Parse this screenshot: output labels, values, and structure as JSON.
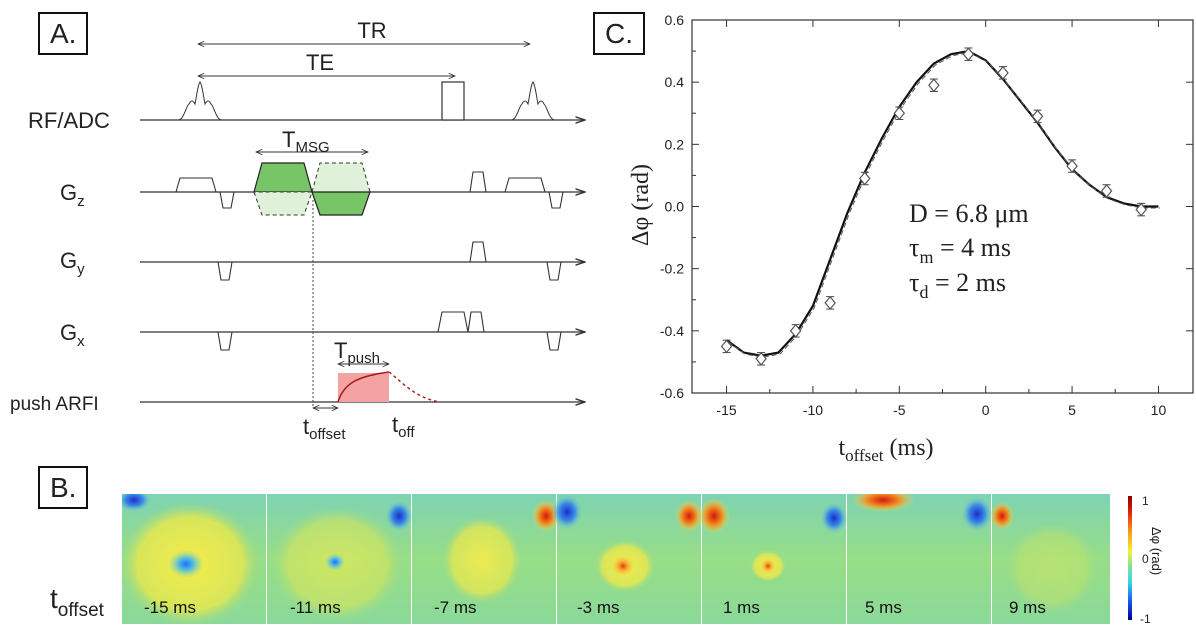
{
  "panel_a": {
    "label": "A.",
    "tr": "TR",
    "te": "TE",
    "rows": {
      "rf": "RF/ADC",
      "gz_main": "G",
      "gz_sub": "z",
      "gy_main": "G",
      "gy_sub": "y",
      "gx_main": "G",
      "gx_sub": "x",
      "push": "push ARFI"
    },
    "tmsg_main": "T",
    "tmsg_sub": "MSG",
    "tpush_main": "T",
    "tpush_sub": "push",
    "toffset_main": "t",
    "toffset_sub": "offset",
    "toff_main": "t",
    "toff_sub": "off",
    "colors": {
      "msg_fill": "#77c567",
      "msg_light": "#dff1d8",
      "push_fill": "#f4a3a3",
      "push_curve": "#a81a1a"
    }
  },
  "panel_b": {
    "label": "B.",
    "row_label_main": "t",
    "row_label_sub": "offset",
    "tiles": [
      "-15 ms",
      "-11 ms",
      "-7 ms",
      "-3 ms",
      "1 ms",
      "5 ms",
      "9 ms"
    ],
    "colorbar": {
      "max": "1",
      "mid": "0",
      "min": "-1",
      "label": "Δφ (rad)"
    }
  },
  "panel_c": {
    "label": "C.",
    "annotations": {
      "d": "D = 6.8 μm",
      "tau_m_main": "τ",
      "tau_m_sub": "m",
      "tau_m_val": " = 4 ms",
      "tau_d_main": "τ",
      "tau_d_sub": "d",
      "tau_d_val": " = 2 ms"
    }
  },
  "chart_data": {
    "type": "scatter",
    "xlabel_main": "t",
    "xlabel_sub": "offset",
    "xlabel_unit": " (ms)",
    "ylabel": "Δφ (rad)",
    "xlim": [
      -17,
      12
    ],
    "ylim": [
      -0.6,
      0.6
    ],
    "xticks": [
      -15,
      -10,
      -5,
      0,
      5,
      10
    ],
    "yticks": [
      -0.6,
      -0.4,
      -0.2,
      0.0,
      0.2,
      0.4,
      0.6
    ],
    "ytick_labels": [
      "-0.6",
      "-0.4",
      "-0.2",
      "0.0",
      "0.2",
      "0.4",
      "0.6"
    ],
    "series": [
      {
        "x": [
          -15,
          -13,
          -11,
          -9,
          -7,
          -5,
          -3,
          -1,
          1,
          3,
          5,
          7,
          9
        ],
        "y": [
          -0.45,
          -0.49,
          -0.4,
          -0.31,
          0.09,
          0.3,
          0.39,
          0.49,
          0.43,
          0.29,
          0.13,
          0.05,
          -0.01
        ],
        "err": [
          0.02,
          0.02,
          0.02,
          0.02,
          0.02,
          0.02,
          0.02,
          0.02,
          0.02,
          0.02,
          0.02,
          0.02,
          0.02
        ]
      }
    ],
    "fit": {
      "x": [
        -15,
        -14,
        -13,
        -12,
        -11,
        -10,
        -9,
        -8,
        -7,
        -6,
        -5,
        -4,
        -3,
        -2,
        -1,
        0,
        1,
        2,
        3,
        4,
        5,
        6,
        7,
        8,
        9,
        10
      ],
      "y": [
        -0.43,
        -0.47,
        -0.48,
        -0.47,
        -0.41,
        -0.32,
        -0.17,
        -0.02,
        0.11,
        0.22,
        0.32,
        0.4,
        0.46,
        0.49,
        0.5,
        0.47,
        0.41,
        0.34,
        0.27,
        0.19,
        0.12,
        0.07,
        0.03,
        0.01,
        0.0,
        0.0
      ]
    }
  }
}
